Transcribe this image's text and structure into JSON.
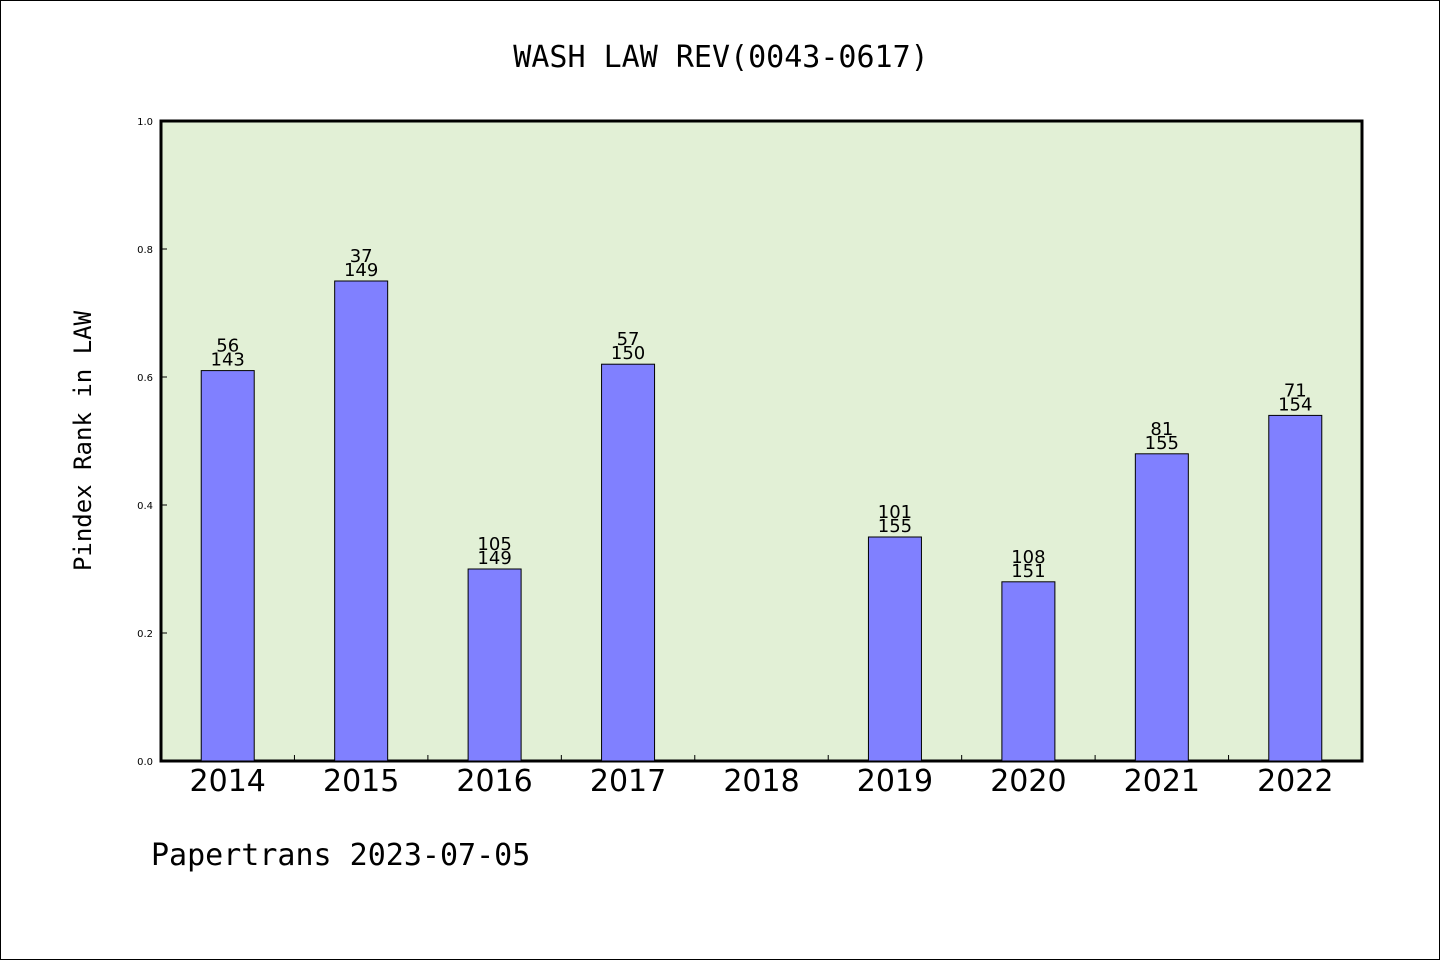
{
  "chart_data": {
    "type": "bar",
    "title": "WASH LAW REV(0043-0617)",
    "ylabel": "Pindex Rank in LAW",
    "xlabel": "",
    "ylim": [
      0,
      1.0
    ],
    "yticks": [
      "0.0",
      "0.2",
      "0.4",
      "0.6",
      "0.8",
      "1.0"
    ],
    "categories": [
      "2014",
      "2015",
      "2016",
      "2017",
      "2018",
      "2019",
      "2020",
      "2021",
      "2022"
    ],
    "values": [
      0.61,
      0.75,
      0.3,
      0.62,
      null,
      0.35,
      0.28,
      0.48,
      0.54
    ],
    "labels_top": [
      "56",
      "37",
      "105",
      "57",
      "",
      "101",
      "108",
      "81",
      "71"
    ],
    "labels_bottom": [
      "143",
      "149",
      "149",
      "150",
      "",
      "155",
      "151",
      "155",
      "154"
    ],
    "colors": {
      "plot_bg": "#e2f0d6",
      "bar": "#8080ff",
      "bar_edge": "#000000"
    },
    "grid": false
  },
  "footer": "Papertrans 2023-07-05"
}
